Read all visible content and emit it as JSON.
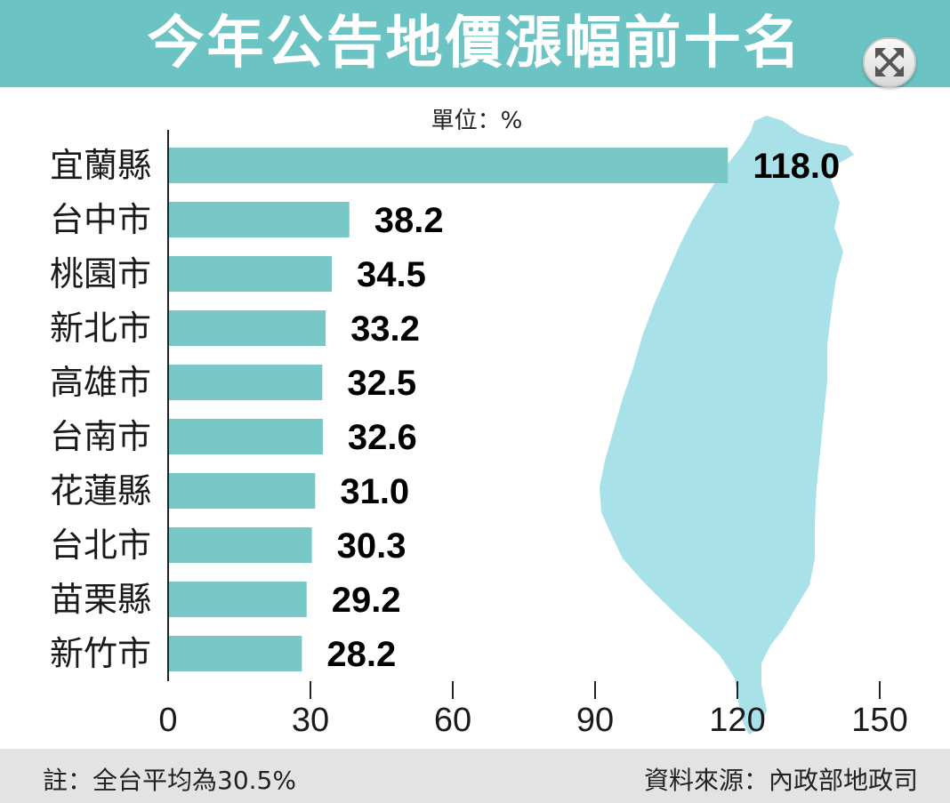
{
  "title": "今年公告地價漲幅前十名",
  "footer": {
    "note": "註：全台平均為30.5%",
    "source": "資料來源：內政部地政司"
  },
  "icons": {
    "expand": "expand-arrows-icon",
    "map": "taiwan-map-icon"
  },
  "colors": {
    "header": "#6cc3c3",
    "bar": "#79c8c8",
    "map": "#a8e2e8",
    "footer": "#e3e3e3"
  },
  "chart_data": {
    "type": "bar",
    "orientation": "horizontal",
    "unit_label": "單位：%",
    "categories": [
      "宜蘭縣",
      "台中市",
      "桃園市",
      "新北市",
      "高雄市",
      "台南市",
      "花蓮縣",
      "台北市",
      "苗栗縣",
      "新竹市"
    ],
    "values": [
      118.0,
      38.2,
      34.5,
      33.2,
      32.5,
      32.6,
      31.0,
      30.3,
      29.2,
      28.2
    ],
    "value_labels": [
      "118.0",
      "38.2",
      "34.5",
      "33.2",
      "32.5",
      "32.6",
      "31.0",
      "30.3",
      "29.2",
      "28.2"
    ],
    "xlim": [
      0,
      150
    ],
    "xticks": [
      0,
      30,
      60,
      90,
      120,
      150
    ],
    "grid": false,
    "legend": "none"
  }
}
